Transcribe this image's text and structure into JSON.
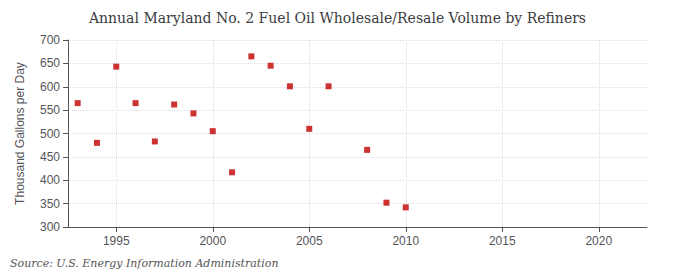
{
  "chart_data": {
    "type": "scatter",
    "title": "Annual Maryland No. 2 Fuel Oil Wholesale/Resale Volume by Refiners",
    "ylabel": "Thousand Gallons per Day",
    "annotation": "Source: U.S. Energy Information Administration",
    "x": [
      1993,
      1994,
      1995,
      1996,
      1997,
      1998,
      1999,
      2000,
      2001,
      2002,
      2003,
      2004,
      2005,
      2006,
      2008,
      2009,
      2010
    ],
    "values": [
      565,
      480,
      643,
      565,
      483,
      562,
      543,
      505,
      417,
      665,
      645,
      601,
      510,
      601,
      465,
      352,
      342
    ],
    "color": "#c00000",
    "marker": "square",
    "xlim": [
      1992.5,
      2022.5
    ],
    "xticks": [
      1995,
      2000,
      2005,
      2010,
      2015,
      2020
    ],
    "ylim": [
      300,
      700
    ],
    "yticks": [
      300,
      350,
      400,
      450,
      500,
      550,
      600,
      650,
      700
    ],
    "grid": true
  }
}
